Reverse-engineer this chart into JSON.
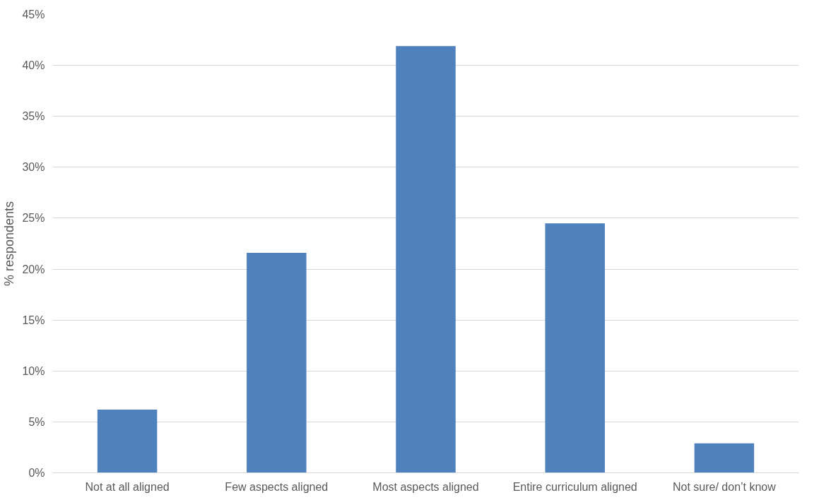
{
  "chart_data": {
    "type": "bar",
    "ylabel": "% respondents",
    "categories": [
      "Not at all aligned",
      "Few aspects aligned",
      "Most aspects aligned",
      "Entire curriculum aligned",
      "Not sure/ don’t know"
    ],
    "values": [
      6.2,
      21.6,
      41.9,
      24.5,
      2.9
    ],
    "color": "#4f81bd",
    "ylim": [
      0,
      45
    ],
    "yticks": [
      {
        "value": 0,
        "label": "0%"
      },
      {
        "value": 5,
        "label": "5%"
      },
      {
        "value": 10,
        "label": "10%"
      },
      {
        "value": 15,
        "label": "15%"
      },
      {
        "value": 20,
        "label": "20%"
      },
      {
        "value": 25,
        "label": "25%"
      },
      {
        "value": 30,
        "label": "30%"
      },
      {
        "value": 35,
        "label": "35%"
      },
      {
        "value": 40,
        "label": "40%"
      },
      {
        "value": 45,
        "label": "45%"
      }
    ],
    "grid": "y"
  }
}
